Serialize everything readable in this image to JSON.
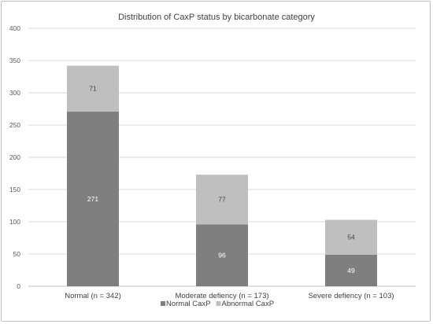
{
  "chart_data": {
    "type": "bar",
    "stacked": true,
    "title": "Distribution of CaxP status by bicarbonate category",
    "categories": [
      "Normal (n = 342)",
      "Moderate defiency (n = 173)",
      "Severe defiency (n = 103)"
    ],
    "series": [
      {
        "name": "Normal CaxP",
        "values": [
          271,
          96,
          49
        ],
        "color": "#7f7f7f",
        "label_color": "#ffffff"
      },
      {
        "name": "Abnormal CaxP",
        "values": [
          71,
          77,
          54
        ],
        "color": "#bfbfbf",
        "label_color": "#404040"
      }
    ],
    "ylim": [
      0,
      400
    ],
    "yticks": [
      "0",
      "50",
      "100",
      "150",
      "200",
      "250",
      "300",
      "350",
      "400"
    ],
    "grid": true,
    "legend_position": "bottom",
    "xlabel": "",
    "ylabel": ""
  }
}
